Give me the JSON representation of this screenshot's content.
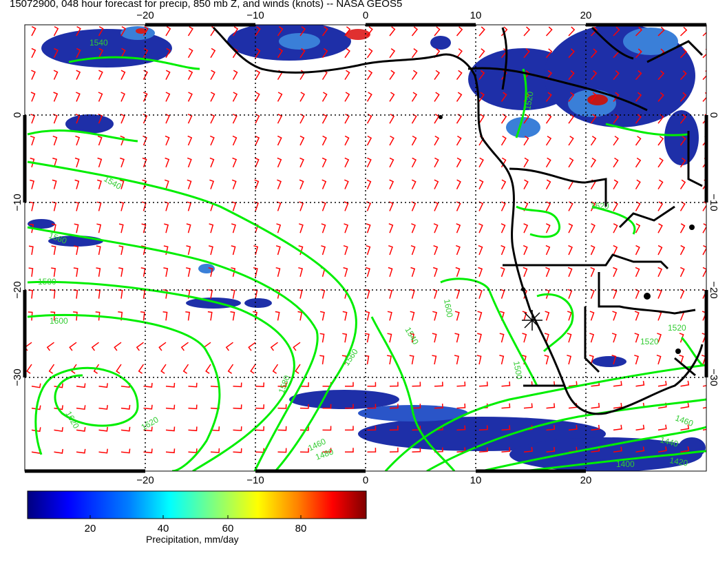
{
  "title": "15072900, 048 hour forecast for precip, 850 mb Z, and winds (knots) -- NASA GEOS5",
  "map": {
    "lon_ticks": [
      "−20",
      "−10",
      "0",
      "10",
      "20"
    ],
    "lat_ticks": [
      "0",
      "−10",
      "−20",
      "−30"
    ],
    "contour_labels": [
      "1540",
      "1540",
      "1560",
      "1580",
      "1600",
      "1620",
      "1620",
      "1620",
      "1600",
      "1580",
      "1560",
      "1540",
      "1500",
      "1520",
      "1460",
      "1440",
      "1420",
      "1400",
      "1480",
      "1460",
      "1520",
      "1520"
    ],
    "colors": {
      "wind_barb": "#ff0000",
      "contour": "#00ee00",
      "coast": "#000000",
      "grid": "#000000"
    }
  },
  "colorbar": {
    "label": "Precipitation, mm/day",
    "ticks": [
      "20",
      "40",
      "60",
      "80"
    ],
    "colors": [
      "#00007f",
      "#0000ff",
      "#007fff",
      "#00ffff",
      "#7fff7f",
      "#ffff00",
      "#ff7f00",
      "#ff0000",
      "#7f0000"
    ]
  }
}
